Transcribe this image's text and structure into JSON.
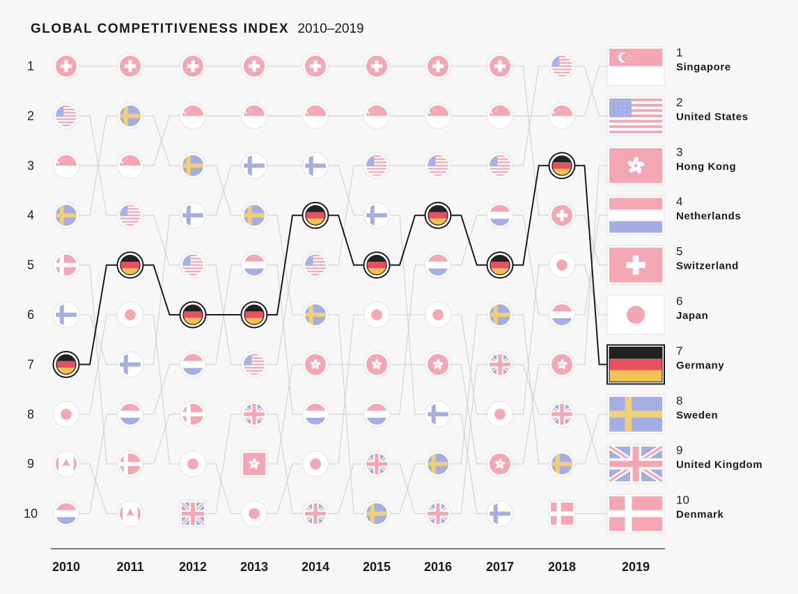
{
  "colors": {
    "red": "#f4a7b2",
    "blue": "#a5aee2",
    "yellow": "#f0cf79",
    "white": "#ffffff",
    "highlight_black": "#222222",
    "highlight_red": "#e8505f",
    "highlight_gold": "#f2c14e",
    "connector": "#d0d0d0",
    "axis": "#333333"
  },
  "chart_data": {
    "type": "table",
    "title": "GLOBAL COMPETITIVENESS INDEX",
    "subtitle": "2010–2019",
    "rank_labels": [
      "1",
      "2",
      "3",
      "4",
      "5",
      "6",
      "7",
      "8",
      "9",
      "10"
    ],
    "years": [
      "2010",
      "2011",
      "2012",
      "2013",
      "2014",
      "2015",
      "2016",
      "2017",
      "2018",
      "2019"
    ],
    "highlight": "germany",
    "rankings": {
      "2010": [
        "switzerland",
        "united-states",
        "singapore",
        "sweden",
        "denmark",
        "finland",
        "germany",
        "japan",
        "canada",
        "netherlands"
      ],
      "2011": [
        "switzerland",
        "sweden",
        "singapore",
        "united-states",
        "germany",
        "japan",
        "finland",
        "netherlands",
        "denmark",
        "canada"
      ],
      "2012": [
        "switzerland",
        "singapore",
        "sweden",
        "finland",
        "united-states",
        "germany",
        "netherlands",
        "denmark",
        "japan",
        "united-kingdom"
      ],
      "2013": [
        "switzerland",
        "singapore",
        "finland",
        "sweden",
        "netherlands",
        "germany",
        "united-states",
        "united-kingdom",
        "hong-kong",
        "japan"
      ],
      "2014": [
        "switzerland",
        "singapore",
        "finland",
        "germany",
        "united-states",
        "sweden",
        "hong-kong",
        "netherlands",
        "japan",
        "united-kingdom"
      ],
      "2015": [
        "switzerland",
        "singapore",
        "united-states",
        "finland",
        "germany",
        "japan",
        "hong-kong",
        "netherlands",
        "united-kingdom",
        "sweden"
      ],
      "2016": [
        "switzerland",
        "singapore",
        "united-states",
        "germany",
        "netherlands",
        "japan",
        "hong-kong",
        "finland",
        "sweden",
        "united-kingdom"
      ],
      "2017": [
        "switzerland",
        "singapore",
        "united-states",
        "netherlands",
        "germany",
        "sweden",
        "united-kingdom",
        "japan",
        "hong-kong",
        "finland"
      ],
      "2018": [
        "united-states",
        "singapore",
        "germany",
        "switzerland",
        "japan",
        "netherlands",
        "hong-kong",
        "united-kingdom",
        "sweden",
        "denmark"
      ],
      "2019": [
        "singapore",
        "united-states",
        "hong-kong",
        "netherlands",
        "switzerland",
        "japan",
        "germany",
        "sweden",
        "united-kingdom",
        "denmark"
      ]
    },
    "final_ranking": [
      {
        "rank": "1",
        "name": "Singapore",
        "flag": "singapore"
      },
      {
        "rank": "2",
        "name": "United States",
        "flag": "united-states"
      },
      {
        "rank": "3",
        "name": "Hong Kong",
        "flag": "hong-kong"
      },
      {
        "rank": "4",
        "name": "Netherlands",
        "flag": "netherlands"
      },
      {
        "rank": "5",
        "name": "Switzerland",
        "flag": "switzerland"
      },
      {
        "rank": "6",
        "name": "Japan",
        "flag": "japan"
      },
      {
        "rank": "7",
        "name": "Germany",
        "flag": "germany"
      },
      {
        "rank": "8",
        "name": "Sweden",
        "flag": "sweden"
      },
      {
        "rank": "9",
        "name": "United Kingdom",
        "flag": "united-kingdom"
      },
      {
        "rank": "10",
        "name": "Denmark",
        "flag": "denmark"
      }
    ],
    "flag_styles": {
      "switzerland": "circle",
      "united-states": "circle",
      "singapore": "circle",
      "sweden": "circle",
      "denmark": "circle",
      "finland": "circle",
      "germany": "circle",
      "japan": "circle",
      "canada": "circle",
      "netherlands": "circle",
      "united-kingdom": "circle",
      "hong-kong": "circle"
    },
    "square_markers": [
      {
        "year": "2012",
        "flag": "united-kingdom"
      },
      {
        "year": "2013",
        "flag": "hong-kong"
      },
      {
        "year": "2018",
        "flag": "denmark"
      }
    ]
  }
}
